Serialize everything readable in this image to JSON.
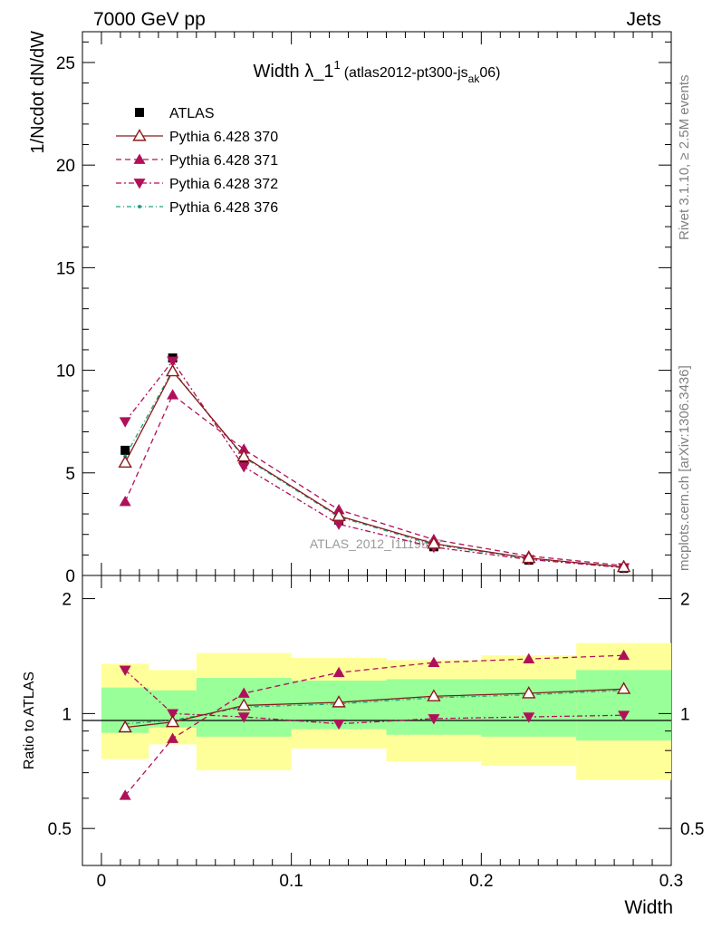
{
  "header": {
    "left": "7000 GeV pp",
    "right": "Jets"
  },
  "side_text": {
    "rivet": "Rivet 3.1.10, ≥ 2.5M events",
    "mcplots": "mcplots.cern.ch [arXiv:1306.3436]"
  },
  "watermark": "ATLAS_2012_I1119557",
  "chart_data": {
    "type": "line",
    "title": {
      "main": "Width λ_1",
      "sup1": "1",
      "paren_open": "(atlas2012-pt300-js",
      "sub": "ak",
      "paren_close": "06)"
    },
    "xlabel": "Width",
    "ylabel": "1/Ncdot dN/dW",
    "ratio_ylabel": "Ratio to ATLAS",
    "xlim": [
      -0.01,
      0.3
    ],
    "ylim": [
      0,
      26.5
    ],
    "ratio_ylim": [
      0.4,
      2.3
    ],
    "ratio_log_scale": true,
    "x_ticks": [
      "0",
      "0.1",
      "0.2",
      "0.3"
    ],
    "y_ticks": [
      "0",
      "5",
      "10",
      "15",
      "20",
      "25"
    ],
    "ratio_ticks": [
      "0.5",
      "1",
      "2"
    ],
    "bin_edges": [
      0,
      0.025,
      0.05,
      0.1,
      0.15,
      0.2,
      0.25,
      0.3
    ],
    "x": [
      0.0125,
      0.0375,
      0.075,
      0.125,
      0.175,
      0.225,
      0.275
    ],
    "legend_position": "top-left",
    "data": {
      "name": "ATLAS",
      "color": "#000000",
      "values": [
        6.1,
        10.6,
        5.6,
        2.7,
        1.4,
        0.75,
        0.35
      ]
    },
    "bands": {
      "inner": {
        "color": "#99ff99",
        "lo": [
          0.89,
          0.92,
          0.87,
          0.91,
          0.88,
          0.87,
          0.85
        ],
        "hi": [
          1.17,
          1.15,
          1.24,
          1.22,
          1.23,
          1.23,
          1.3
        ]
      },
      "outer": {
        "color": "#ffff99",
        "lo": [
          0.76,
          0.83,
          0.71,
          0.81,
          0.75,
          0.73,
          0.67
        ],
        "hi": [
          1.35,
          1.3,
          1.44,
          1.4,
          1.38,
          1.42,
          1.53
        ]
      }
    },
    "series": [
      {
        "name": "Pythia 6.428 370",
        "color": "#8b1a1a",
        "marker": "triangle-open",
        "dash": "",
        "values": [
          5.5,
          9.95,
          5.8,
          2.9,
          1.55,
          0.85,
          0.41
        ],
        "ratio": [
          0.92,
          0.95,
          1.05,
          1.07,
          1.11,
          1.13,
          1.16
        ]
      },
      {
        "name": "Pythia 6.428 371",
        "color": "#b0105a",
        "marker": "triangle-up",
        "dash": "6,4",
        "values": [
          3.6,
          8.8,
          6.15,
          3.2,
          1.75,
          0.95,
          0.48
        ],
        "ratio": [
          0.61,
          0.86,
          1.13,
          1.28,
          1.36,
          1.39,
          1.42
        ]
      },
      {
        "name": "Pythia 6.428 372",
        "color": "#b0105a",
        "marker": "triangle-down",
        "dash": "6,3,2,3",
        "values": [
          7.5,
          10.45,
          5.3,
          2.5,
          1.38,
          0.78,
          0.38
        ],
        "ratio": [
          1.3,
          1.0,
          0.98,
          0.94,
          0.97,
          0.98,
          0.99
        ]
      },
      {
        "name": "Pythia 6.428 376",
        "color": "#20a080",
        "marker": "dot",
        "dash": "5,3,1,3",
        "values": [
          5.8,
          10.0,
          5.75,
          2.85,
          1.5,
          0.82,
          0.4
        ],
        "ratio": [
          0.94,
          0.96,
          1.04,
          1.06,
          1.1,
          1.12,
          1.15
        ]
      }
    ]
  }
}
